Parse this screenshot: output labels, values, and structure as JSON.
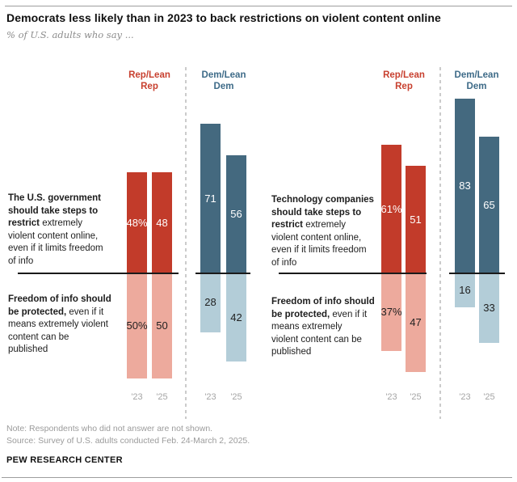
{
  "header": {
    "title": "Democrats less likely than in 2023 to back restrictions on violent content online",
    "subtitle": "% of U.S. adults who say ..."
  },
  "chart_data": {
    "type": "bar",
    "orientation": "diverging-vertical",
    "years": [
      "'23",
      "'25"
    ],
    "ylim": [
      0,
      100
    ],
    "grid": false,
    "colors": {
      "rep_up": "#c23b2a",
      "rep_down": "#edaa9d",
      "rep_header": "#c8402f",
      "dem_up": "#44697f",
      "dem_down": "#b3cdd8",
      "dem_header": "#3e6b88",
      "axis": "#1a1a1a",
      "year_label": "#a5a5a5",
      "divider": "#cbcbcb"
    },
    "panels": [
      {
        "restrict_statement_lines": [
          "**The U.S. government**",
          "**should take steps to**",
          "**restrict** extremely",
          "violent content online,",
          "even if it limits freedom",
          "of info"
        ],
        "freedom_statement_lines": [
          "**Freedom of info should**",
          "**be protected,** even if it",
          "means extremely violent",
          "content can be",
          "published"
        ],
        "groups": [
          {
            "party_lines": [
              "Rep/Lean",
              "Rep"
            ],
            "party": "Rep/Lean Rep",
            "restrict_values": [
              48,
              48
            ],
            "restrict_labels": [
              "48%",
              "48"
            ],
            "freedom_values": [
              50,
              50
            ],
            "freedom_labels": [
              "50%",
              "50"
            ]
          },
          {
            "party_lines": [
              "Dem/Lean",
              "Dem"
            ],
            "party": "Dem/Lean Dem",
            "restrict_values": [
              71,
              56
            ],
            "restrict_labels": [
              "71",
              "56"
            ],
            "freedom_values": [
              28,
              42
            ],
            "freedom_labels": [
              "28",
              "42"
            ]
          }
        ]
      },
      {
        "restrict_statement_lines": [
          "**Technology companies**",
          "**should take steps to**",
          "**restrict** extremely",
          "violent content online,",
          "even if it limits freedom",
          "of info"
        ],
        "freedom_statement_lines": [
          "**Freedom of info should**",
          "**be protected,** even if it",
          "means extremely",
          "violent content can be",
          "published"
        ],
        "groups": [
          {
            "party_lines": [
              "Rep/Lean",
              "Rep"
            ],
            "party": "Rep/Lean Rep",
            "restrict_values": [
              61,
              51
            ],
            "restrict_labels": [
              "61%",
              "51"
            ],
            "freedom_values": [
              37,
              47
            ],
            "freedom_labels": [
              "37%",
              "47"
            ]
          },
          {
            "party_lines": [
              "Dem/Lean",
              "Dem"
            ],
            "party": "Dem/Lean Dem",
            "restrict_values": [
              83,
              65
            ],
            "restrict_labels": [
              "83",
              "65"
            ],
            "freedom_values": [
              16,
              33
            ],
            "freedom_labels": [
              "16",
              "33"
            ]
          }
        ]
      }
    ]
  },
  "footer": {
    "note": "Note: Respondents who did not answer are not shown.",
    "source": "Source: Survey of U.S. adults conducted Feb. 24-March 2, 2025.",
    "brand": "PEW RESEARCH CENTER"
  }
}
